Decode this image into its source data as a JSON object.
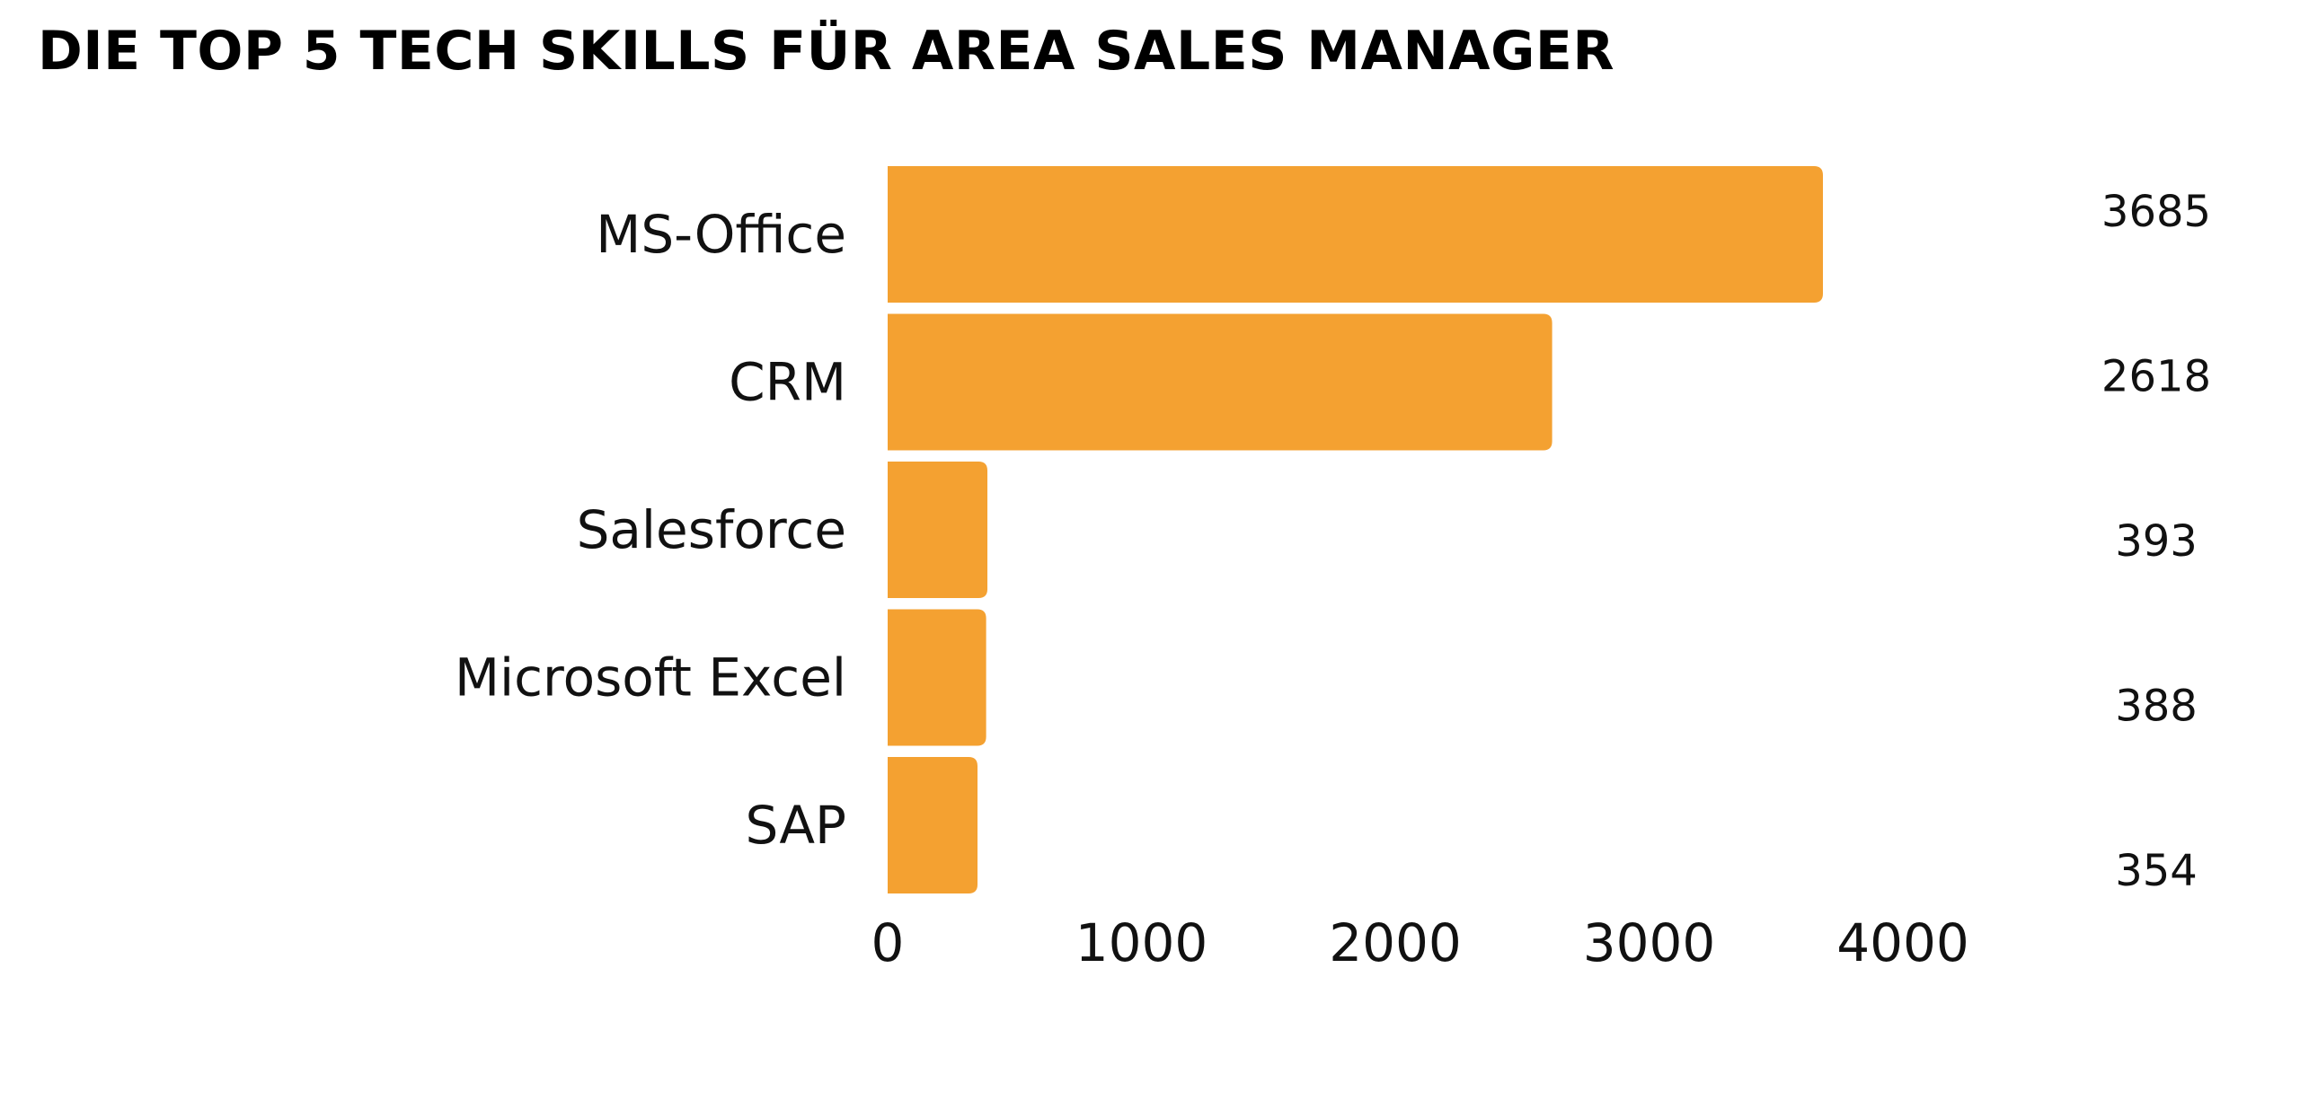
{
  "chart_data": {
    "type": "bar",
    "orientation": "horizontal",
    "title": "DIE TOP 5 TECH SKILLS FÜR AREA SALES MANAGER",
    "categories": [
      "MS-Office",
      "CRM",
      "Salesforce",
      "Microsoft Excel",
      "SAP"
    ],
    "values": [
      3685,
      2618,
      393,
      388,
      354
    ],
    "data_labels": [
      "3685",
      "2618",
      "393",
      "388",
      "354"
    ],
    "xlim": [
      0,
      4000
    ],
    "x_ticks": [
      0,
      1000,
      2000,
      3000,
      4000
    ],
    "xlabel": "",
    "ylabel": "",
    "grid": false,
    "legend": "none",
    "bar_color": "#F4A131"
  }
}
